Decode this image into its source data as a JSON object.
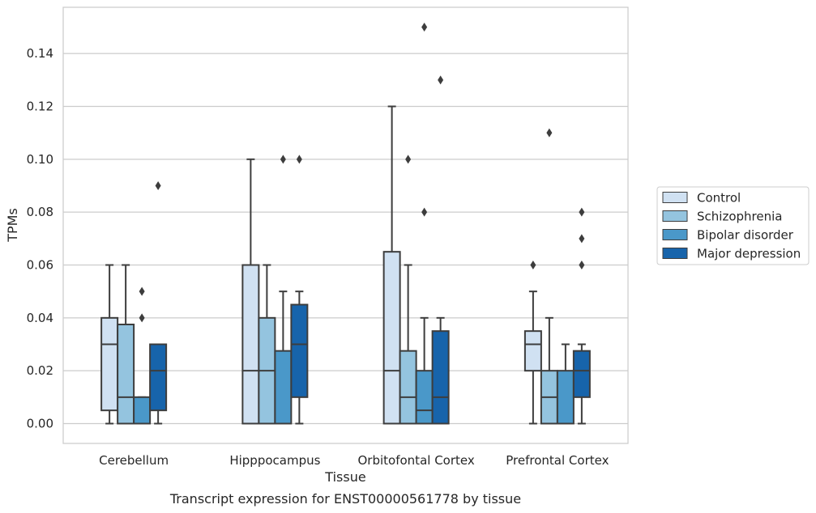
{
  "chart_data": {
    "type": "box",
    "title": "",
    "caption": "Transcript expression for ENST00000561778 by tissue",
    "xlabel": "Tissue",
    "ylabel": "TPMs",
    "ylim": [
      -0.0075,
      0.1575
    ],
    "yticks": [
      "0.00",
      "0.02",
      "0.04",
      "0.06",
      "0.08",
      "0.10",
      "0.12",
      "0.14"
    ],
    "grid": "horizontal",
    "legend_position": "right",
    "categories": [
      "Cerebellum",
      "Hipppocampus",
      "Orbitofontal Cortex",
      "Prefrontal Cortex"
    ],
    "series": [
      {
        "name": "Control",
        "color": "#d0e1f2",
        "boxes": [
          {
            "q1": 0.005,
            "median": 0.03,
            "q3": 0.04,
            "whisker_low": 0.0,
            "whisker_high": 0.06,
            "outliers": []
          },
          {
            "q1": 0.0,
            "median": 0.02,
            "q3": 0.06,
            "whisker_low": 0.0,
            "whisker_high": 0.1,
            "outliers": []
          },
          {
            "q1": 0.0,
            "median": 0.02,
            "q3": 0.065,
            "whisker_low": 0.0,
            "whisker_high": 0.12,
            "outliers": []
          },
          {
            "q1": 0.02,
            "median": 0.03,
            "q3": 0.035,
            "whisker_low": 0.0,
            "whisker_high": 0.05,
            "outliers": [
              0.06
            ]
          }
        ]
      },
      {
        "name": "Schizophrenia",
        "color": "#94c4df",
        "boxes": [
          {
            "q1": 0.0,
            "median": 0.01,
            "q3": 0.0375,
            "whisker_low": 0.0,
            "whisker_high": 0.06,
            "outliers": []
          },
          {
            "q1": 0.0,
            "median": 0.02,
            "q3": 0.04,
            "whisker_low": 0.0,
            "whisker_high": 0.06,
            "outliers": []
          },
          {
            "q1": 0.0,
            "median": 0.01,
            "q3": 0.0275,
            "whisker_low": 0.0,
            "whisker_high": 0.06,
            "outliers": [
              0.1
            ]
          },
          {
            "q1": 0.0,
            "median": 0.01,
            "q3": 0.02,
            "whisker_low": 0.0,
            "whisker_high": 0.04,
            "outliers": [
              0.11
            ]
          }
        ]
      },
      {
        "name": "Bipolar disorder",
        "color": "#4a98c9",
        "boxes": [
          {
            "q1": 0.0,
            "median": 0.0,
            "q3": 0.01,
            "whisker_low": 0.0,
            "whisker_high": 0.01,
            "outliers": [
              0.04,
              0.05
            ]
          },
          {
            "q1": 0.0,
            "median": 0.0,
            "q3": 0.0275,
            "whisker_low": 0.0,
            "whisker_high": 0.05,
            "outliers": [
              0.1
            ]
          },
          {
            "q1": 0.0,
            "median": 0.005,
            "q3": 0.02,
            "whisker_low": 0.0,
            "whisker_high": 0.04,
            "outliers": [
              0.08,
              0.15
            ]
          },
          {
            "q1": 0.0,
            "median": 0.0,
            "q3": 0.02,
            "whisker_low": 0.0,
            "whisker_high": 0.03,
            "outliers": []
          }
        ]
      },
      {
        "name": "Major depression",
        "color": "#1764ab",
        "boxes": [
          {
            "q1": 0.005,
            "median": 0.02,
            "q3": 0.03,
            "whisker_low": 0.0,
            "whisker_high": 0.03,
            "outliers": [
              0.09
            ]
          },
          {
            "q1": 0.01,
            "median": 0.03,
            "q3": 0.045,
            "whisker_low": 0.0,
            "whisker_high": 0.05,
            "outliers": [
              0.1
            ]
          },
          {
            "q1": 0.0,
            "median": 0.01,
            "q3": 0.035,
            "whisker_low": 0.0,
            "whisker_high": 0.04,
            "outliers": [
              0.13
            ]
          },
          {
            "q1": 0.01,
            "median": 0.02,
            "q3": 0.0275,
            "whisker_low": 0.0,
            "whisker_high": 0.03,
            "outliers": [
              0.06,
              0.07,
              0.08
            ]
          }
        ]
      }
    ]
  }
}
